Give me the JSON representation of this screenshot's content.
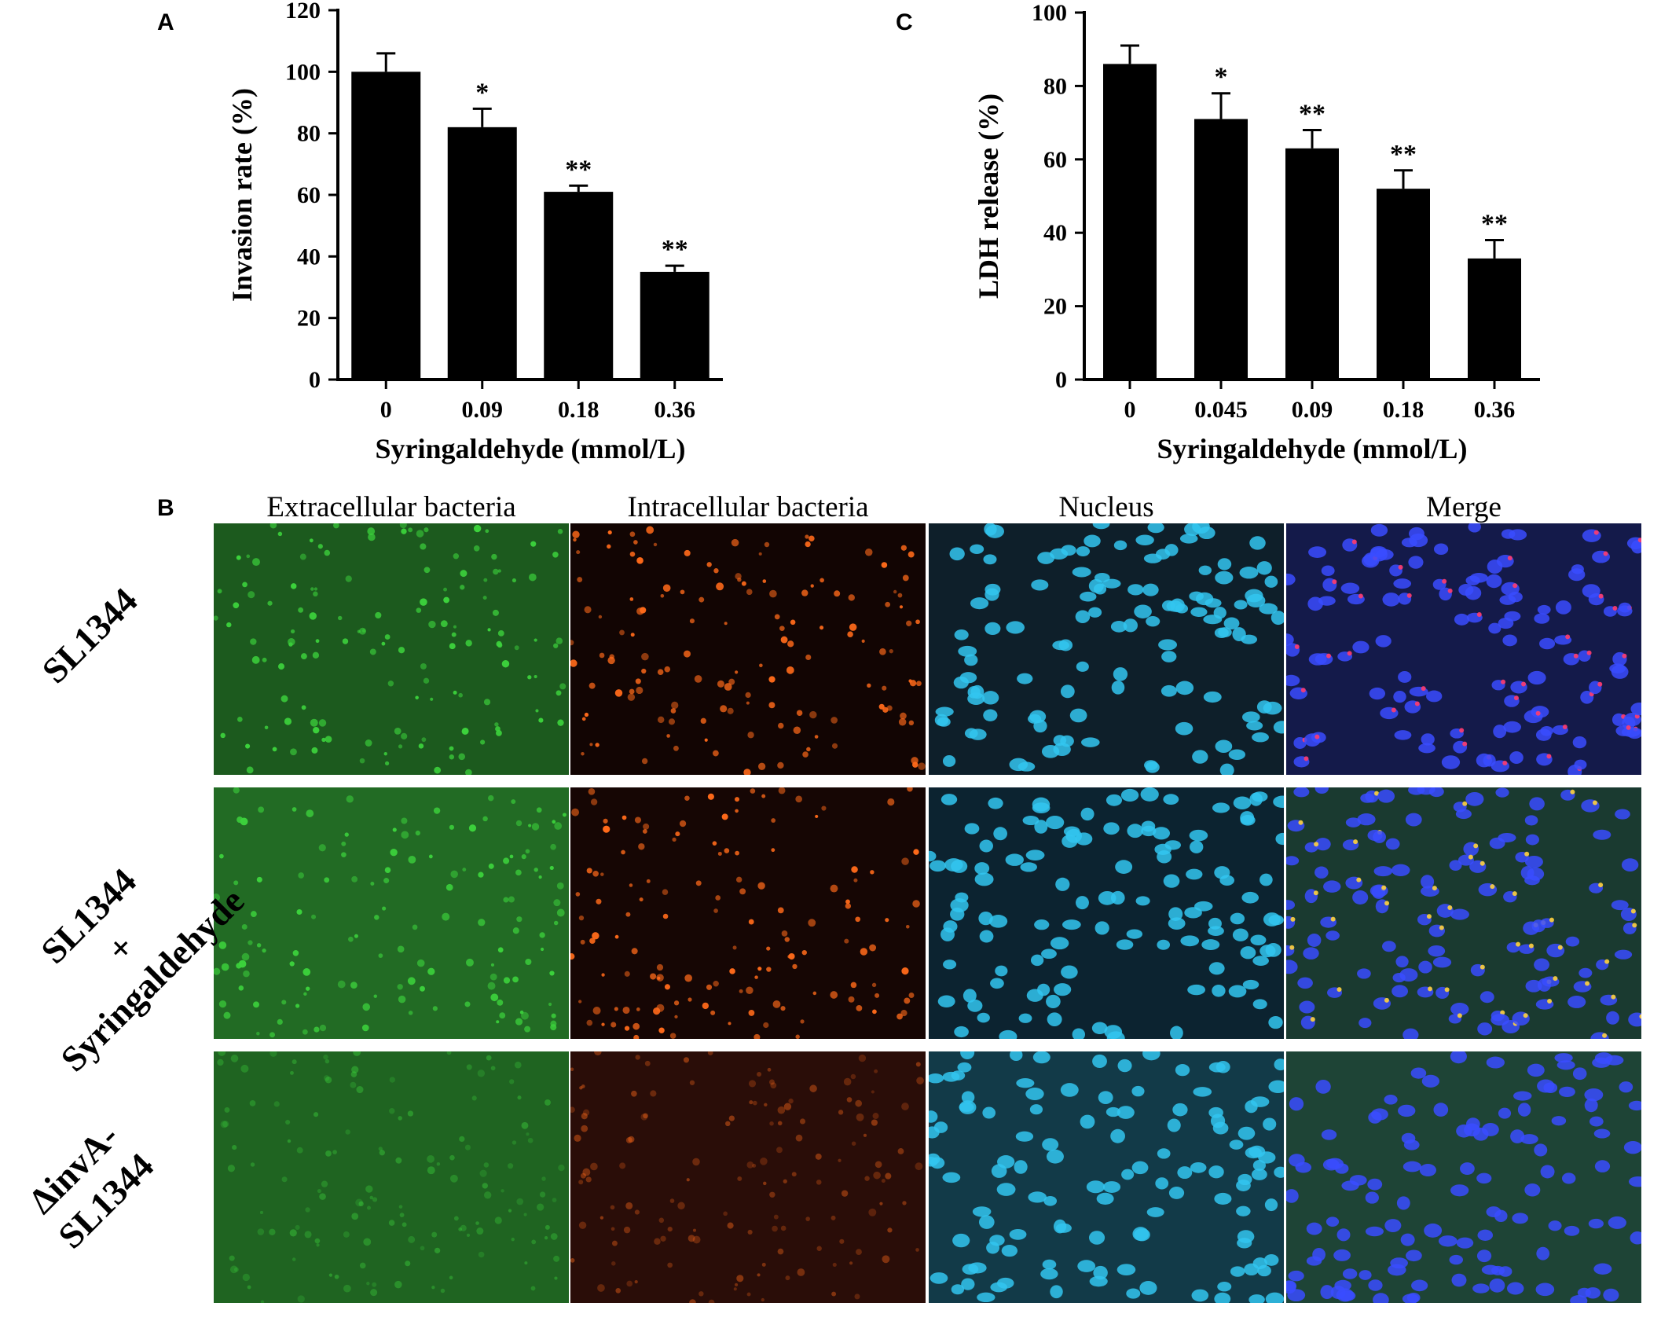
{
  "panels": {
    "a": {
      "letter": "A"
    },
    "b": {
      "letter": "B"
    },
    "c": {
      "letter": "C"
    }
  },
  "chart_data": [
    {
      "type": "bar",
      "panel": "A",
      "categories": [
        "0",
        "0.09",
        "0.18",
        "0.36"
      ],
      "values": [
        100,
        82,
        61,
        35
      ],
      "errors": [
        6,
        6,
        2,
        2
      ],
      "significance": [
        "",
        "*",
        "**",
        "**"
      ],
      "xlabel": "Syringaldehyde (mmol/L)",
      "ylabel": "Invasion rate (%)",
      "ylim": [
        0,
        120
      ],
      "yticks": [
        "0",
        "20",
        "40",
        "60",
        "80",
        "100",
        "120"
      ],
      "bar_color": "#000000",
      "grid": false
    },
    {
      "type": "bar",
      "panel": "C",
      "categories": [
        "0",
        "0.045",
        "0.09",
        "0.18",
        "0.36"
      ],
      "values": [
        86,
        71,
        63,
        52,
        33
      ],
      "errors": [
        5,
        7,
        5,
        5,
        5
      ],
      "significance": [
        "",
        "*",
        "**",
        "**",
        "**"
      ],
      "xlabel": "Syringaldehyde (mmol/L)",
      "ylabel": "LDH release (%)",
      "ylim": [
        0,
        100
      ],
      "yticks": [
        "0",
        "20",
        "40",
        "60",
        "80",
        "100"
      ],
      "bar_color": "#000000",
      "grid": false
    }
  ],
  "micrographs": {
    "columns": [
      "Extracellular bacteria",
      "Intracellular bacteria",
      "Nucleus",
      "Merge"
    ],
    "rows": [
      {
        "label_lines": [
          "SL1344"
        ]
      },
      {
        "label_lines": [
          "SL1344",
          "+",
          "Syringaldehyde"
        ]
      },
      {
        "label_lines": [
          "ΔinvA-",
          "SL1344"
        ]
      }
    ],
    "colors": {
      "extracellular": "#3cd23c",
      "intracellular": "#ff6a1a",
      "nucleus": "#33c6f0",
      "merge": "#3a4cff"
    }
  }
}
